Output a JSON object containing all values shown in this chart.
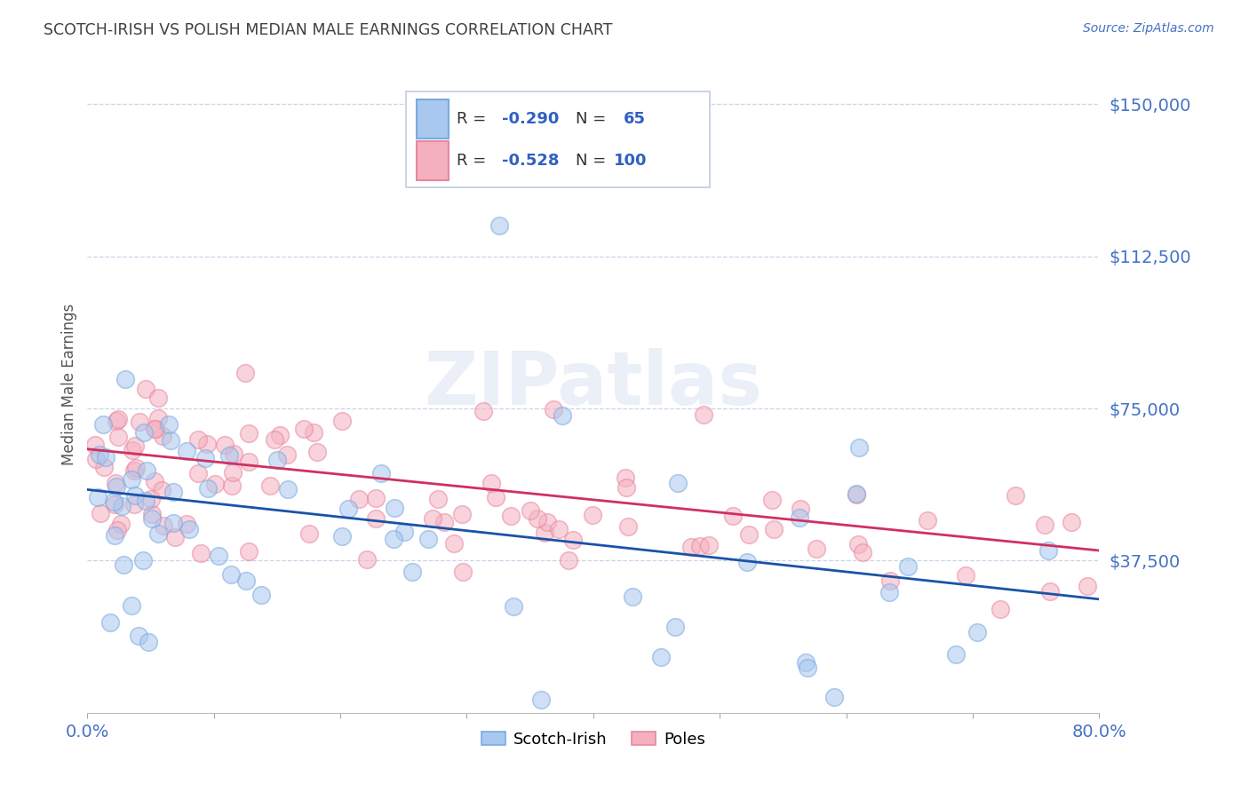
{
  "title": "SCOTCH-IRISH VS POLISH MEDIAN MALE EARNINGS CORRELATION CHART",
  "source": "Source: ZipAtlas.com",
  "ylabel": "Median Male Earnings",
  "ytick_labels": [
    "$150,000",
    "$112,500",
    "$75,000",
    "$37,500"
  ],
  "ytick_values": [
    150000,
    112500,
    75000,
    37500
  ],
  "ymin": 0,
  "ymax": 162000,
  "xmin": 0.0,
  "xmax": 0.8,
  "watermark": "ZIPatlas",
  "scotch_irish_R": -0.29,
  "scotch_irish_N": 65,
  "poles_R": -0.528,
  "poles_N": 100,
  "scotch_irish_marker_color": "#a8c8f0",
  "scotch_irish_edge_color": "#7aaade",
  "poles_marker_color": "#f5b0c0",
  "poles_edge_color": "#e888a0",
  "scotch_irish_line_color": "#1a52a8",
  "poles_line_color": "#d03060",
  "title_color": "#404040",
  "axis_label_color": "#555555",
  "ytick_color": "#4472c4",
  "xtick_color": "#4472c4",
  "grid_color": "#c8d4e8",
  "background_color": "#ffffff",
  "source_color": "#4472c4",
  "legend_border_color": "#c0cce0",
  "legend_text_color": "#333333",
  "legend_R_N_color": "#3060c0",
  "si_intercept": 55000,
  "si_slope": -35000,
  "pol_intercept": 65000,
  "pol_slope": -35000
}
